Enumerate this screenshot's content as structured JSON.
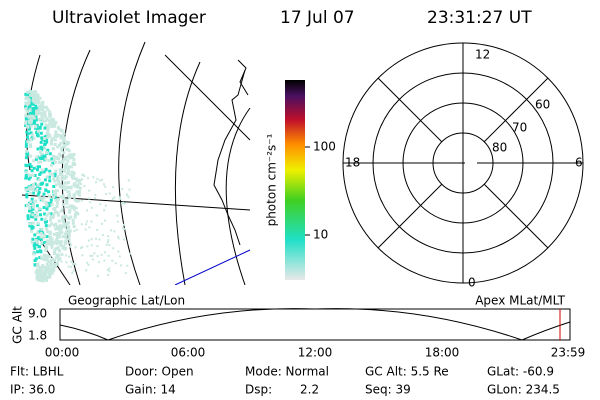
{
  "header": {
    "title": "Ultraviolet Imager",
    "date": "17 Jul 07",
    "time": "23:31:27 UT"
  },
  "colorbar": {
    "label": "photon cm⁻²s⁻¹",
    "ticks": [
      "100",
      "10"
    ]
  },
  "polar": {
    "mlt_labels": [
      "12",
      "18",
      "6",
      "0"
    ],
    "lat_labels": [
      "60",
      "70",
      "80"
    ]
  },
  "panel_labels": {
    "left": "Geographic Lat/Lon",
    "right": "Apex MLat/MLT"
  },
  "altitude": {
    "label": "GC Alt",
    "y_labels": [
      "9.0",
      "1.8"
    ],
    "time_labels": [
      "00:00",
      "06:00",
      "12:00",
      "18:00",
      "23:59"
    ]
  },
  "info": {
    "rows": [
      [
        "Flt: LBHL",
        "Door: Open",
        "Mode: Normal",
        "GC Alt: 5.5 Re",
        "GLat: -60.9"
      ],
      [
        "IP: 36.0",
        "Gain: 14",
        "Dsp:",
        "Seq: 39",
        "GLon: 234.5"
      ]
    ],
    "dsp_value": "2.2"
  }
}
